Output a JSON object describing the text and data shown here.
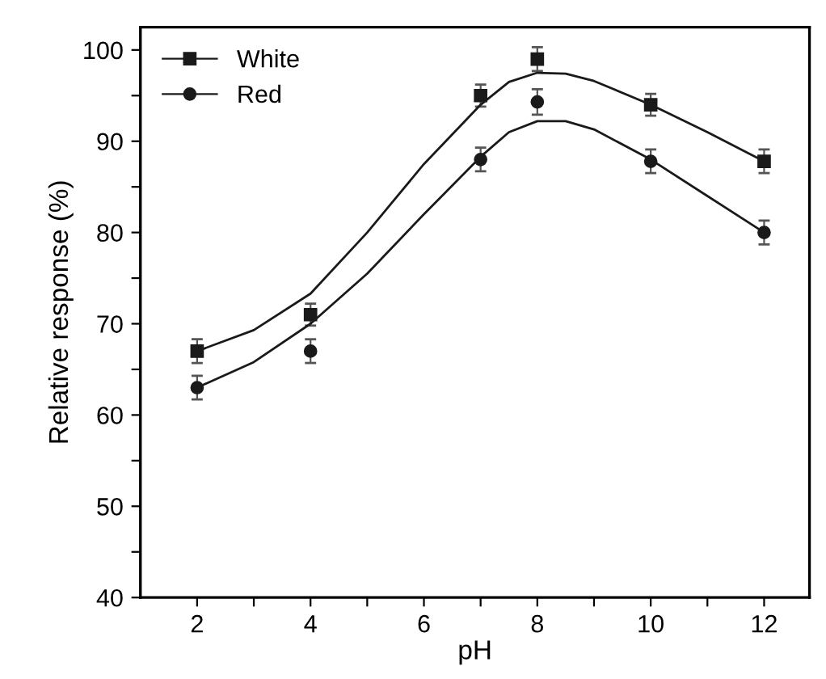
{
  "chart_data": {
    "type": "scatter",
    "xlabel": "pH",
    "ylabel": "Relative response (%)",
    "xlim": [
      1,
      12.8
    ],
    "ylim": [
      40,
      102.5
    ],
    "xticks": [
      2,
      {
        "value": 3,
        "label": null
      },
      4,
      {
        "value": 5,
        "label": null
      },
      6,
      {
        "value": 7,
        "label": null
      },
      8,
      {
        "value": 9,
        "label": null
      },
      10,
      {
        "value": 11,
        "label": null
      },
      12
    ],
    "yticks": [
      40,
      {
        "value": 45,
        "label": null
      },
      50,
      {
        "value": 55,
        "label": null
      },
      60,
      {
        "value": 65,
        "label": null
      },
      70,
      {
        "value": 75,
        "label": null
      },
      80,
      {
        "value": 85,
        "label": null
      },
      90,
      {
        "value": 95,
        "label": null
      },
      100
    ],
    "legend": "top left",
    "grid": false,
    "series": [
      {
        "name": "White",
        "marker": "square",
        "color": "#1a1a1a",
        "x": [
          2,
          4,
          7,
          8,
          10,
          12
        ],
        "values": [
          67,
          71,
          95,
          99,
          94,
          87.8
        ],
        "errors": [
          1.3,
          1.2,
          1.2,
          1.3,
          1.2,
          1.3
        ]
      },
      {
        "name": "Red",
        "marker": "circle",
        "color": "#1a1a1a",
        "x": [
          2,
          4,
          7,
          8,
          10,
          12
        ],
        "values": [
          63,
          67,
          88,
          94.3,
          87.8,
          80
        ],
        "errors": [
          1.3,
          1.3,
          1.3,
          1.4,
          1.3,
          1.3
        ]
      },
      {
        "type": "line",
        "marker": "none",
        "color": "#1a1a1a",
        "x": [
          2,
          3,
          4,
          5,
          6,
          7,
          7.5,
          8,
          8.5,
          9,
          10,
          11,
          12
        ],
        "values": [
          67,
          69.3,
          73.3,
          80,
          87.5,
          94,
          96.5,
          97.5,
          97.4,
          96.6,
          94,
          91,
          87.8
        ]
      },
      {
        "type": "line",
        "marker": "none",
        "color": "#1a1a1a",
        "x": [
          2,
          3,
          4,
          5,
          6,
          7,
          7.5,
          8,
          8.5,
          9,
          10,
          11,
          12
        ],
        "values": [
          63,
          65.8,
          70,
          75.5,
          82,
          88.3,
          91,
          92.2,
          92.2,
          91.3,
          88,
          84,
          80
        ]
      }
    ]
  }
}
